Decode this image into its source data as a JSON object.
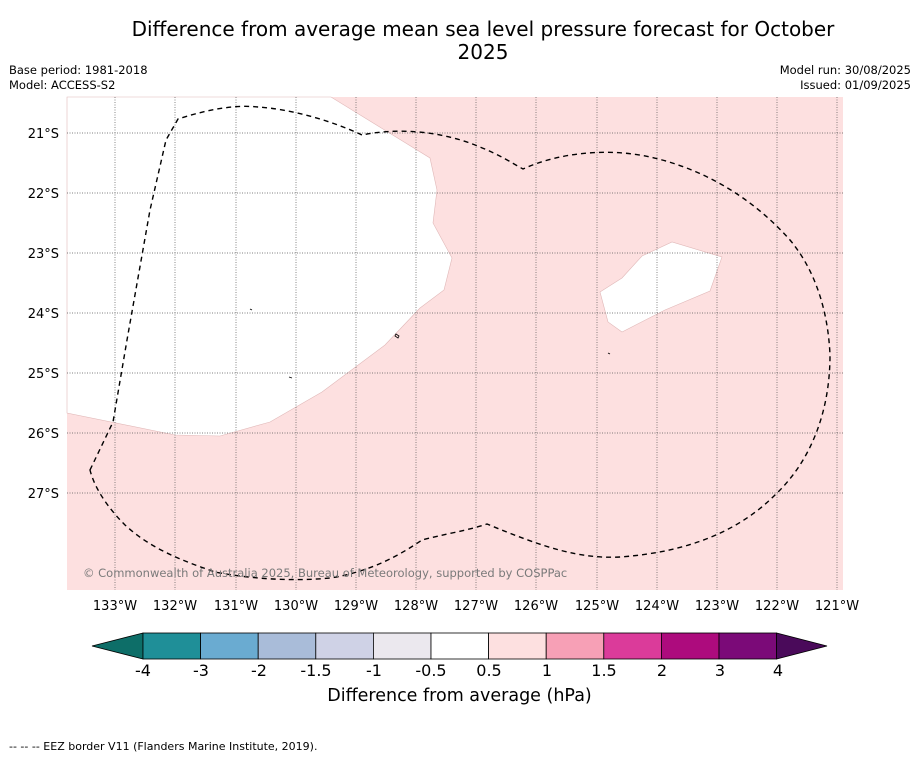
{
  "title": "Difference from average mean sea level pressure forecast for October 2025",
  "base_period": "Base period: 1981-2018",
  "model": "Model: ACCESS-S2",
  "model_run": "Model run: 30/08/2025",
  "issued": "Issued: 01/09/2025",
  "lat_labels": [
    "21°S",
    "22°S",
    "23°S",
    "24°S",
    "25°S",
    "26°S",
    "27°S"
  ],
  "lon_labels": [
    "133°W",
    "132°W",
    "131°W",
    "130°W",
    "129°W",
    "128°W",
    "127°W",
    "126°W",
    "125°W",
    "124°W",
    "123°W",
    "122°W",
    "121°W"
  ],
  "copyright": "© Commonwealth of Australia 2025, Bureau of Meteorology, supported by COSPPac",
  "colorbar": {
    "ticks": [
      "-4",
      "-3",
      "-2",
      "-1.5",
      "-1",
      "-0.5",
      "0.5",
      "1",
      "1.5",
      "2",
      "3",
      "4"
    ],
    "colors": [
      "#0d6e68",
      "#1f8f98",
      "#6aabd1",
      "#a9bcd9",
      "#cfd2e6",
      "#ebe8ee",
      "#ffffff",
      "#fde0e0",
      "#f7a0b6",
      "#db3b9a",
      "#ad0b7d",
      "#7b0a78",
      "#4a0a5a"
    ],
    "label": "Difference from average (hPa)"
  },
  "footer": "--  --  -- EEZ border V11 (Flanders Marine Institute, 2019).",
  "legend_classes": {
    "pink_area": "0.5 to 1",
    "white_area": "-0.5 to 0.5"
  }
}
